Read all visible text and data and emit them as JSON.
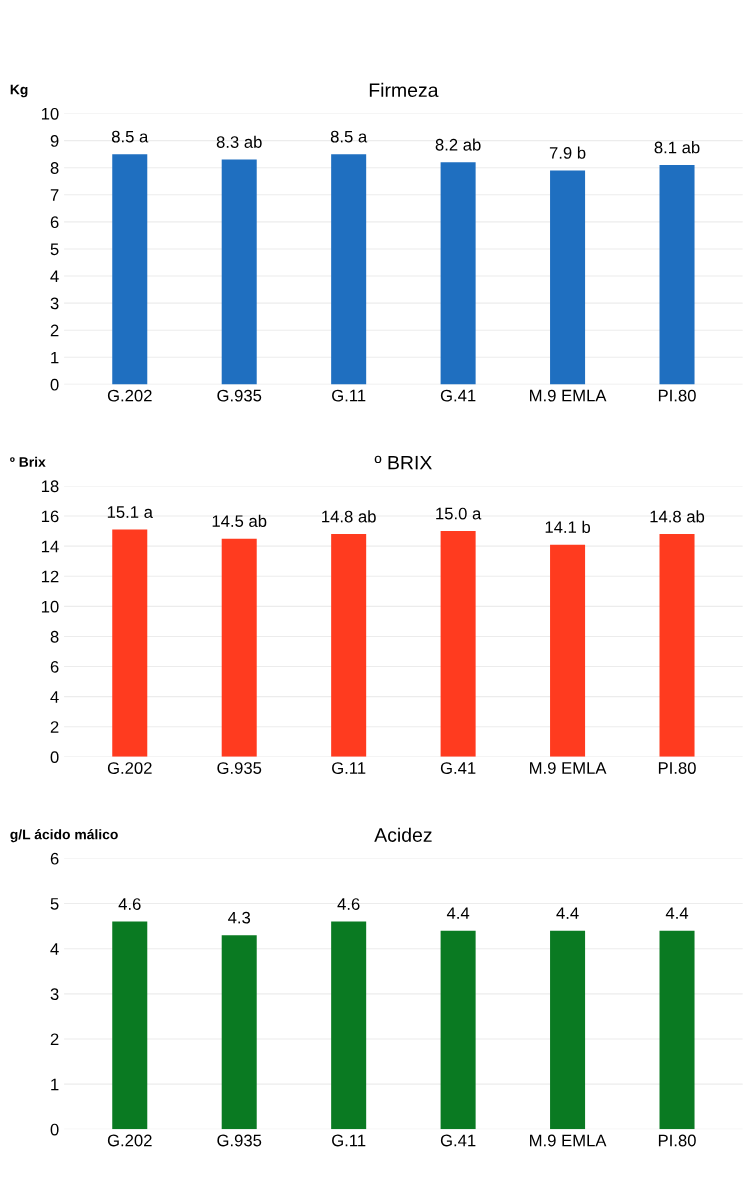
{
  "chart_data": [
    {
      "type": "bar",
      "title": "Firmeza",
      "ylabel": "Kg",
      "categories": [
        "G.202",
        "G.935",
        "G.11",
        "G.41",
        "M.9 EMLA",
        "PI.80"
      ],
      "color": "#1f6fc0",
      "values": [
        8.5,
        8.3,
        8.5,
        8.2,
        7.9,
        8.1
      ],
      "value_labels": [
        "8.5 a",
        "8.3 ab",
        "8.5 a",
        "8.2 ab",
        "7.9 b",
        "8.1 ab"
      ],
      "ylim": [
        0,
        10
      ],
      "yticks": [
        0,
        1,
        2,
        3,
        4,
        5,
        6,
        7,
        8,
        9,
        10
      ],
      "grid": "y"
    },
    {
      "type": "bar",
      "title": "º BRIX",
      "ylabel": "º Brix",
      "categories": [
        "G.202",
        "G.935",
        "G.11",
        "G.41",
        "M.9 EMLA",
        "PI.80"
      ],
      "color": "#ff3b1f",
      "values": [
        15.1,
        14.5,
        14.8,
        15.0,
        14.1,
        14.8
      ],
      "value_labels": [
        "15.1 a",
        "14.5 ab",
        "14.8 ab",
        "15.0 a",
        "14.1 b",
        "14.8 ab"
      ],
      "ylim": [
        0,
        18
      ],
      "yticks": [
        0,
        2,
        4,
        6,
        8,
        10,
        12,
        14,
        16,
        18
      ],
      "grid": "y"
    },
    {
      "type": "bar",
      "title": "Acidez",
      "ylabel": "g/L ácido málico",
      "categories": [
        "G.202",
        "G.935",
        "G.11",
        "G.41",
        "M.9 EMLA",
        "PI.80"
      ],
      "color": "#0a7a22",
      "values": [
        4.6,
        4.3,
        4.6,
        4.4,
        4.4,
        4.4
      ],
      "data_labels": true,
      "ylim": [
        0,
        6
      ],
      "yticks": [
        0,
        1,
        2,
        3,
        4,
        5,
        6
      ],
      "grid": "y"
    }
  ]
}
